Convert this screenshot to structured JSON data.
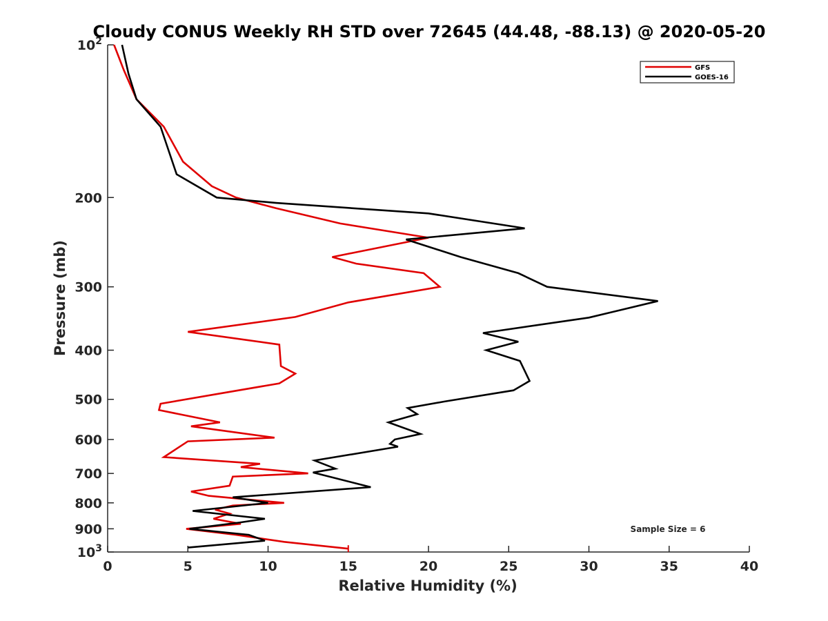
{
  "chart_data": {
    "type": "line",
    "title": "Cloudy CONUS Weekly RH STD over 72645 (44.48, -88.13) @ 2020-05-20",
    "xlabel": "Relative Humidity (%)",
    "ylabel": "Pressure (mb)",
    "xlim": [
      0,
      40
    ],
    "ylim": [
      100,
      1000
    ],
    "y_scale": "log",
    "y_reversed": true,
    "x_ticks": [
      "0",
      "5",
      "10",
      "15",
      "20",
      "25",
      "30",
      "35",
      "40"
    ],
    "y_ticks": [
      {
        "value": 100,
        "base": "10",
        "exp": "2"
      },
      {
        "value": 200,
        "label": "200"
      },
      {
        "value": 300,
        "label": "300"
      },
      {
        "value": 400,
        "label": "400"
      },
      {
        "value": 500,
        "label": "500"
      },
      {
        "value": 600,
        "label": "600"
      },
      {
        "value": 700,
        "label": "700"
      },
      {
        "value": 800,
        "label": "800"
      },
      {
        "value": 900,
        "label": "900"
      },
      {
        "value": 1000,
        "base": "10",
        "exp": "3"
      }
    ],
    "legend_position": "top-right",
    "annotation": "Sample Size = 6",
    "series": [
      {
        "name": "GFS",
        "color": "#e00000",
        "points": [
          [
            0.4,
            100
          ],
          [
            1.0,
            112
          ],
          [
            1.8,
            128
          ],
          [
            3.5,
            145
          ],
          [
            4.7,
            170
          ],
          [
            6.5,
            190
          ],
          [
            8.0,
            200
          ],
          [
            10.5,
            210
          ],
          [
            14.5,
            225
          ],
          [
            20.0,
            240
          ],
          [
            14.0,
            262
          ],
          [
            15.5,
            270
          ],
          [
            19.7,
            282
          ],
          [
            20.7,
            300
          ],
          [
            15.0,
            322
          ],
          [
            11.7,
            344
          ],
          [
            5.0,
            368
          ],
          [
            10.7,
            390
          ],
          [
            10.8,
            430
          ],
          [
            11.7,
            445
          ],
          [
            10.7,
            465
          ],
          [
            6.5,
            490
          ],
          [
            3.3,
            510
          ],
          [
            3.2,
            525
          ],
          [
            7.0,
            555
          ],
          [
            5.2,
            565
          ],
          [
            10.4,
            595
          ],
          [
            5.0,
            605
          ],
          [
            3.5,
            650
          ],
          [
            9.5,
            670
          ],
          [
            8.3,
            680
          ],
          [
            12.5,
            700
          ],
          [
            7.8,
            710
          ],
          [
            7.6,
            740
          ],
          [
            5.2,
            760
          ],
          [
            6.3,
            775
          ],
          [
            11.0,
            800
          ],
          [
            7.8,
            810
          ],
          [
            6.7,
            825
          ],
          [
            7.6,
            840
          ],
          [
            6.6,
            860
          ],
          [
            8.3,
            880
          ],
          [
            4.9,
            900
          ],
          [
            8.0,
            925
          ],
          [
            11.0,
            955
          ],
          [
            15.0,
            985
          ]
        ]
      },
      {
        "name": "GOES-16",
        "color": "#000000",
        "points": [
          [
            0.9,
            100
          ],
          [
            1.3,
            114
          ],
          [
            1.8,
            128
          ],
          [
            3.3,
            145
          ],
          [
            4.3,
            180
          ],
          [
            6.8,
            200
          ],
          [
            10.5,
            205
          ],
          [
            20.0,
            215
          ],
          [
            26.0,
            230
          ],
          [
            18.6,
            242
          ],
          [
            22.0,
            262
          ],
          [
            25.6,
            282
          ],
          [
            27.4,
            300
          ],
          [
            34.3,
            320
          ],
          [
            30.0,
            345
          ],
          [
            23.4,
            370
          ],
          [
            25.6,
            385
          ],
          [
            23.6,
            400
          ],
          [
            25.7,
            420
          ],
          [
            26.3,
            460
          ],
          [
            25.3,
            480
          ],
          [
            21.0,
            505
          ],
          [
            18.7,
            520
          ],
          [
            19.3,
            535
          ],
          [
            17.5,
            555
          ],
          [
            19.5,
            585
          ],
          [
            17.9,
            600
          ],
          [
            17.6,
            612
          ],
          [
            18.1,
            620
          ],
          [
            12.9,
            660
          ],
          [
            14.2,
            685
          ],
          [
            12.8,
            697
          ],
          [
            16.4,
            745
          ],
          [
            7.8,
            780
          ],
          [
            10.0,
            800
          ],
          [
            5.3,
            830
          ],
          [
            9.8,
            860
          ],
          [
            8.2,
            875
          ],
          [
            5.1,
            900
          ],
          [
            8.8,
            925
          ],
          [
            9.8,
            950
          ],
          [
            5.0,
            980
          ]
        ]
      }
    ]
  }
}
